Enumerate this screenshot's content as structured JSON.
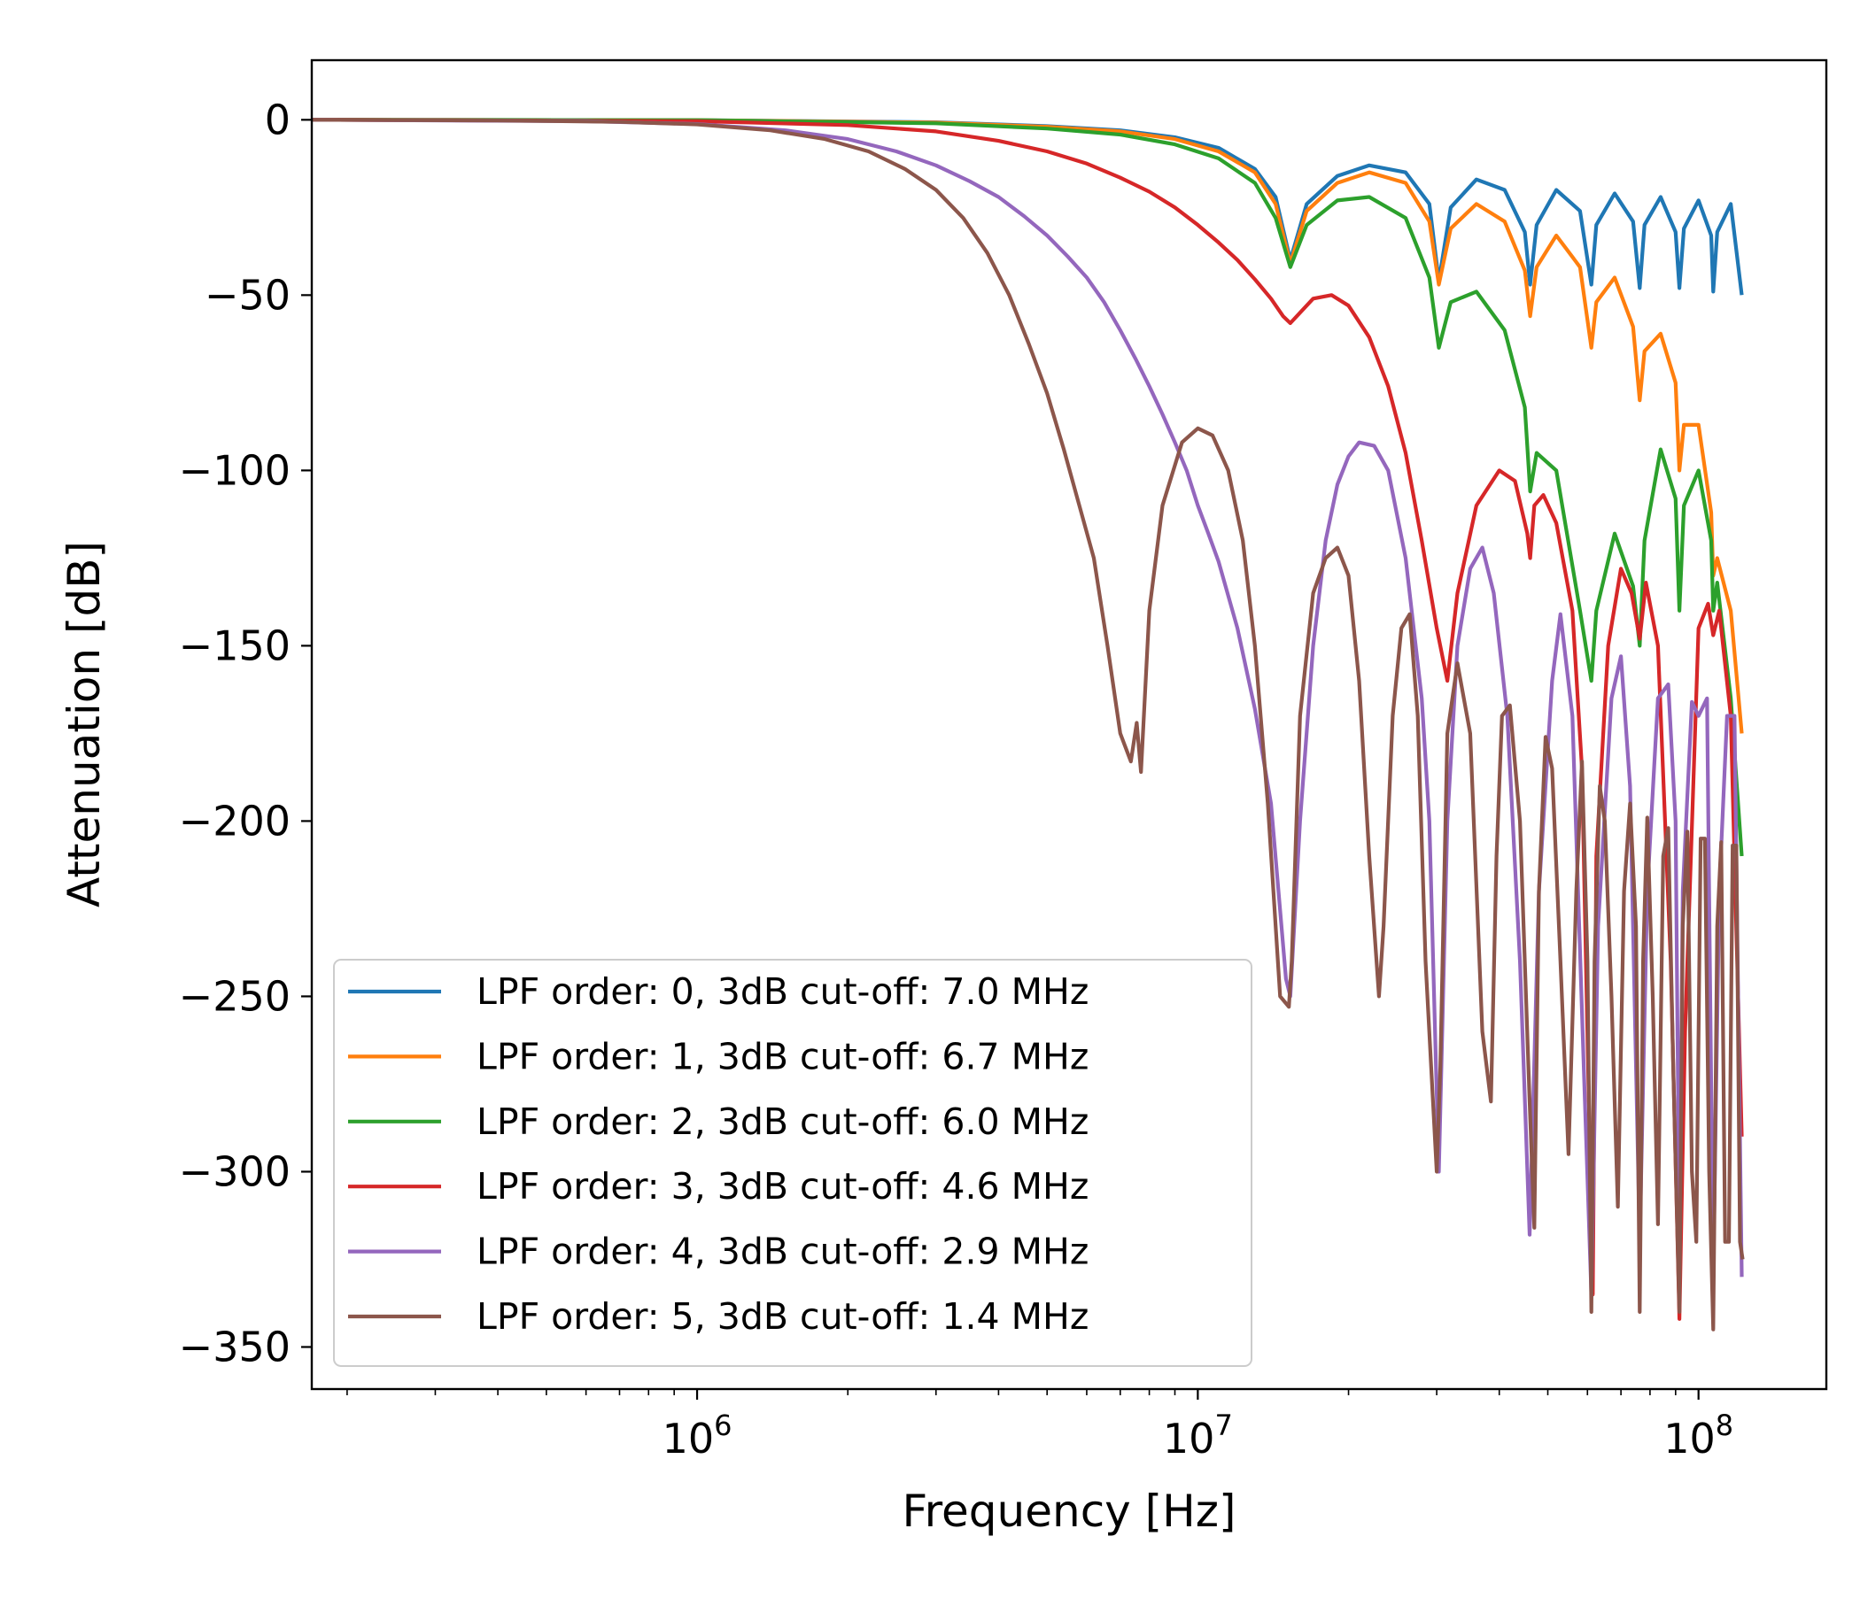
{
  "chart_data": {
    "type": "line",
    "title": "",
    "xlabel": "Frequency [Hz]",
    "ylabel": "Attenuation [dB]",
    "xscale": "log",
    "xlim": [
      170000,
      180000000
    ],
    "ylim": [
      -362,
      17
    ],
    "grid": false,
    "legend_position": "lower-left",
    "x_ticks": [
      {
        "value": 1000000,
        "base": "10",
        "exp": "6"
      },
      {
        "value": 10000000,
        "base": "10",
        "exp": "7"
      },
      {
        "value": 100000000,
        "base": "10",
        "exp": "8"
      }
    ],
    "y_ticks": [
      {
        "value": 0,
        "label": "0"
      },
      {
        "value": -50,
        "label": "−50"
      },
      {
        "value": -100,
        "label": "−100"
      },
      {
        "value": -150,
        "label": "−150"
      },
      {
        "value": -200,
        "label": "−200"
      },
      {
        "value": -250,
        "label": "−250"
      },
      {
        "value": -300,
        "label": "−300"
      },
      {
        "value": -350,
        "label": "−350"
      }
    ],
    "series": [
      {
        "name": "LPF order: 0, 3dB cut-off: 7.0 MHz",
        "color": "#1f77b4",
        "x": [
          170000,
          1000000,
          3000000,
          5000000,
          7000000,
          9000000,
          11000000,
          13000000,
          14300000,
          15300000,
          16500000,
          19000000,
          22000000,
          26000000,
          29000000,
          30300000,
          32000000,
          36000000,
          41000000,
          45000000,
          46100000,
          47500000,
          52000000,
          58000000,
          61100000,
          62500000,
          68000000,
          74000000,
          76300000,
          78000000,
          84000000,
          90000000,
          91600000,
          93500000,
          100000000,
          106000000,
          107000000,
          109000000,
          116000000,
          122000000
        ],
        "y": [
          0,
          -0.1,
          -0.7,
          -1.8,
          -3.0,
          -5.0,
          -8.0,
          -14.0,
          -22.0,
          -40.0,
          -24.0,
          -16.0,
          -13.0,
          -15.0,
          -24.0,
          -46.0,
          -25.0,
          -17.0,
          -20.0,
          -32.0,
          -47.0,
          -30.0,
          -20.0,
          -26.0,
          -47.0,
          -30.0,
          -21.0,
          -29.0,
          -48.0,
          -30.0,
          -22.0,
          -32.0,
          -48.0,
          -31.0,
          -23.0,
          -33.0,
          -49.0,
          -32.0,
          -24.0,
          -50.0
        ]
      },
      {
        "name": "LPF order: 1, 3dB cut-off: 6.7 MHz",
        "color": "#ff7f0e",
        "x": [
          170000,
          1000000,
          3000000,
          5000000,
          7000000,
          9000000,
          11000000,
          13000000,
          14300000,
          15300000,
          16500000,
          19000000,
          22000000,
          26000000,
          29000000,
          30300000,
          32000000,
          36000000,
          41000000,
          45000000,
          46100000,
          47500000,
          52000000,
          58000000,
          61100000,
          62500000,
          68000000,
          74000000,
          76300000,
          78000000,
          84000000,
          90000000,
          91600000,
          93500000,
          100000000,
          106000000,
          107000000,
          109000000,
          116000000,
          122000000
        ],
        "y": [
          0,
          -0.1,
          -0.8,
          -2.0,
          -3.3,
          -5.5,
          -9.0,
          -15.0,
          -24.0,
          -41.0,
          -26.0,
          -18.0,
          -15.0,
          -18.0,
          -29.0,
          -47.0,
          -31.0,
          -24.0,
          -29.0,
          -43.0,
          -56.0,
          -42.0,
          -33.0,
          -42.0,
          -65.0,
          -52.0,
          -45.0,
          -59.0,
          -80.0,
          -66.0,
          -61.0,
          -75.0,
          -100.0,
          -87.0,
          -87.0,
          -112.0,
          -130.0,
          -125.0,
          -140.0,
          -175.0
        ]
      },
      {
        "name": "LPF order: 2, 3dB cut-off: 6.0 MHz",
        "color": "#2ca02c",
        "x": [
          170000,
          1000000,
          3000000,
          5000000,
          7000000,
          9000000,
          11000000,
          13000000,
          14300000,
          15300000,
          16500000,
          19000000,
          22000000,
          26000000,
          29000000,
          30300000,
          32000000,
          36000000,
          41000000,
          45000000,
          46100000,
          47500000,
          52000000,
          58000000,
          61100000,
          62500000,
          68000000,
          74000000,
          76300000,
          78000000,
          84000000,
          90000000,
          91600000,
          93500000,
          100000000,
          106000000,
          107000000,
          109000000,
          116000000,
          122000000
        ],
        "y": [
          0,
          -0.1,
          -1.0,
          -2.5,
          -4.2,
          -7.0,
          -11.0,
          -18.0,
          -28.0,
          -42.0,
          -30.0,
          -23.0,
          -22.0,
          -28.0,
          -45.0,
          -65.0,
          -52.0,
          -49.0,
          -60.0,
          -82.0,
          -106.0,
          -95.0,
          -100.0,
          -140.0,
          -160.0,
          -140.0,
          -118.0,
          -133.0,
          -150.0,
          -120.0,
          -94.0,
          -108.0,
          -140.0,
          -110.0,
          -100.0,
          -120.0,
          -140.0,
          -132.0,
          -165.0,
          -210.0
        ]
      },
      {
        "name": "LPF order: 3, 3dB cut-off: 4.6 MHz",
        "color": "#d62728",
        "x": [
          170000,
          1000000,
          2000000,
          3000000,
          4000000,
          5000000,
          6000000,
          7000000,
          8000000,
          9000000,
          10000000,
          11000000,
          12000000,
          13000000,
          14000000,
          14800000,
          15300000,
          16000000,
          17000000,
          18500000,
          20000000,
          22000000,
          24000000,
          26000000,
          28000000,
          30000000,
          31500000,
          33000000,
          36000000,
          40000000,
          43000000,
          45500000,
          46100000,
          47000000,
          49000000,
          52000000,
          56000000,
          58500000,
          61000000,
          61500000,
          62500000,
          66000000,
          70000000,
          73500000,
          76300000,
          78500000,
          83000000,
          88000000,
          91600000,
          94000000,
          100000000,
          104500000,
          107000000,
          110000000,
          116000000,
          122000000
        ],
        "y": [
          0,
          -0.4,
          -1.5,
          -3.3,
          -6.0,
          -9.0,
          -12.5,
          -16.5,
          -20.5,
          -25.0,
          -30.0,
          -35.0,
          -40.0,
          -45.5,
          -51.0,
          -56.0,
          -58.0,
          -55.0,
          -51.0,
          -50.0,
          -53.0,
          -62.0,
          -76.0,
          -95.0,
          -120.0,
          -145.0,
          -160.0,
          -135.0,
          -110.0,
          -100.0,
          -103.0,
          -118.0,
          -125.0,
          -110.0,
          -107.0,
          -115.0,
          -140.0,
          -185.0,
          -310.0,
          -335.0,
          -210.0,
          -150.0,
          -128.0,
          -135.0,
          -148.0,
          -132.0,
          -150.0,
          -240.0,
          -342.0,
          -260.0,
          -145.0,
          -138.0,
          -147.0,
          -140.0,
          -170.0,
          -290.0
        ]
      },
      {
        "name": "LPF order: 4, 3dB cut-off: 2.9 MHz",
        "color": "#9467bd",
        "x": [
          170000,
          600000,
          1000000,
          1500000,
          2000000,
          2500000,
          3000000,
          3500000,
          4000000,
          4500000,
          5000000,
          5500000,
          6000000,
          6500000,
          7000000,
          7500000,
          8000000,
          8500000,
          9000000,
          9500000,
          10000000,
          10500000,
          11000000,
          12000000,
          13000000,
          14000000,
          15000000,
          15300000,
          16000000,
          17000000,
          18000000,
          19000000,
          20000000,
          21000000,
          22500000,
          24000000,
          26000000,
          28000000,
          29000000,
          30300000,
          31500000,
          33000000,
          35000000,
          37000000,
          39000000,
          41500000,
          44000000,
          46000000,
          48000000,
          51000000,
          53000000,
          56000000,
          59000000,
          61100000,
          63000000,
          67000000,
          70000000,
          73000000,
          76300000,
          79000000,
          83000000,
          87000000,
          90000000,
          91600000,
          93000000,
          97000000,
          100000000,
          104000000,
          107000000,
          110000000,
          114000000,
          118000000,
          122000000
        ],
        "y": [
          0,
          -0.4,
          -1.2,
          -3.0,
          -5.5,
          -9.0,
          -13.0,
          -17.5,
          -22.0,
          -27.5,
          -33.0,
          -39.0,
          -45.0,
          -52.0,
          -60.0,
          -68.0,
          -76.0,
          -84.0,
          -92.0,
          -100.0,
          -110.0,
          -118.0,
          -126.0,
          -145.0,
          -168.0,
          -195.0,
          -245.0,
          -250.0,
          -200.0,
          -150.0,
          -120.0,
          -104.0,
          -96.0,
          -92.0,
          -93.0,
          -100.0,
          -125.0,
          -165.0,
          -200.0,
          -300.0,
          -200.0,
          -150.0,
          -128.0,
          -122.0,
          -135.0,
          -170.0,
          -240.0,
          -318.0,
          -220.0,
          -160.0,
          -141.0,
          -170.0,
          -270.0,
          -335.0,
          -230.0,
          -165.0,
          -153.0,
          -190.0,
          -320.0,
          -220.0,
          -165.0,
          -161.0,
          -200.0,
          -320.0,
          -220.0,
          -166.0,
          -170.0,
          -165.0,
          -330.0,
          -220.0,
          -170.0,
          -170.0,
          -330.0
        ]
      },
      {
        "name": "LPF order: 5, 3dB cut-off: 1.4 MHz",
        "color": "#8c564b",
        "x": [
          170000,
          400000,
          700000,
          1000000,
          1400000,
          1800000,
          2200000,
          2600000,
          3000000,
          3400000,
          3800000,
          4200000,
          4600000,
          5000000,
          5400000,
          5800000,
          6200000,
          6600000,
          7000000,
          7350000,
          7550000,
          7700000,
          8000000,
          8500000,
          9300000,
          10000000,
          10700000,
          11500000,
          12300000,
          13000000,
          13800000,
          14600000,
          15200000,
          15400000,
          16000000,
          17000000,
          18000000,
          19000000,
          20000000,
          21000000,
          22000000,
          23000000,
          23500000,
          24500000,
          25500000,
          26500000,
          27500000,
          28500000,
          30000000,
          30500000,
          31500000,
          33000000,
          35000000,
          37000000,
          38500000,
          39500000,
          40500000,
          42000000,
          44000000,
          46000000,
          47000000,
          48000000,
          49500000,
          51000000,
          53000000,
          55000000,
          57000000,
          58500000,
          60000000,
          61100000,
          62000000,
          63500000,
          65000000,
          67000000,
          69000000,
          71000000,
          73000000,
          75000000,
          76300000,
          77500000,
          79000000,
          81000000,
          83000000,
          85000000,
          87000000,
          89000000,
          91600000,
          93000000,
          95000000,
          97000000,
          99000000,
          101000000,
          103000000,
          105000000,
          107000000,
          109000000,
          111000000,
          113000000,
          115000000,
          117000000,
          119000000,
          121000000,
          122500000
        ],
        "y": [
          0,
          -0.2,
          -0.6,
          -1.3,
          -3.0,
          -5.5,
          -9.0,
          -14.0,
          -20.0,
          -28.0,
          -38.0,
          -50.0,
          -64.0,
          -78.0,
          -94.0,
          -110.0,
          -125.0,
          -150.0,
          -175.0,
          -183.0,
          -172.0,
          -186.0,
          -140.0,
          -110.0,
          -92.0,
          -88.0,
          -90.0,
          -100.0,
          -120.0,
          -150.0,
          -195.0,
          -250.0,
          -253.0,
          -240.0,
          -170.0,
          -135.0,
          -125.0,
          -122.0,
          -130.0,
          -160.0,
          -210.0,
          -250.0,
          -230.0,
          -170.0,
          -145.0,
          -141.0,
          -170.0,
          -240.0,
          -300.0,
          -270.0,
          -175.0,
          -155.0,
          -175.0,
          -260.0,
          -280.0,
          -210.0,
          -170.0,
          -167.0,
          -200.0,
          -280.0,
          -316.0,
          -220.0,
          -176.0,
          -185.0,
          -240.0,
          -295.0,
          -220.0,
          -183.0,
          -240.0,
          -340.0,
          -240.0,
          -190.0,
          -200.0,
          -250.0,
          -310.0,
          -220.0,
          -195.0,
          -230.0,
          -340.0,
          -240.0,
          -199.0,
          -250.0,
          -315.0,
          -210.0,
          -202.0,
          -270.0,
          -340.0,
          -230.0,
          -203.0,
          -300.0,
          -320.0,
          -205.0,
          -205.0,
          -300.0,
          -345.0,
          -230.0,
          -206.0,
          -320.0,
          -320.0,
          -207.0,
          -207.0,
          -320.0,
          -325.0
        ]
      }
    ]
  }
}
